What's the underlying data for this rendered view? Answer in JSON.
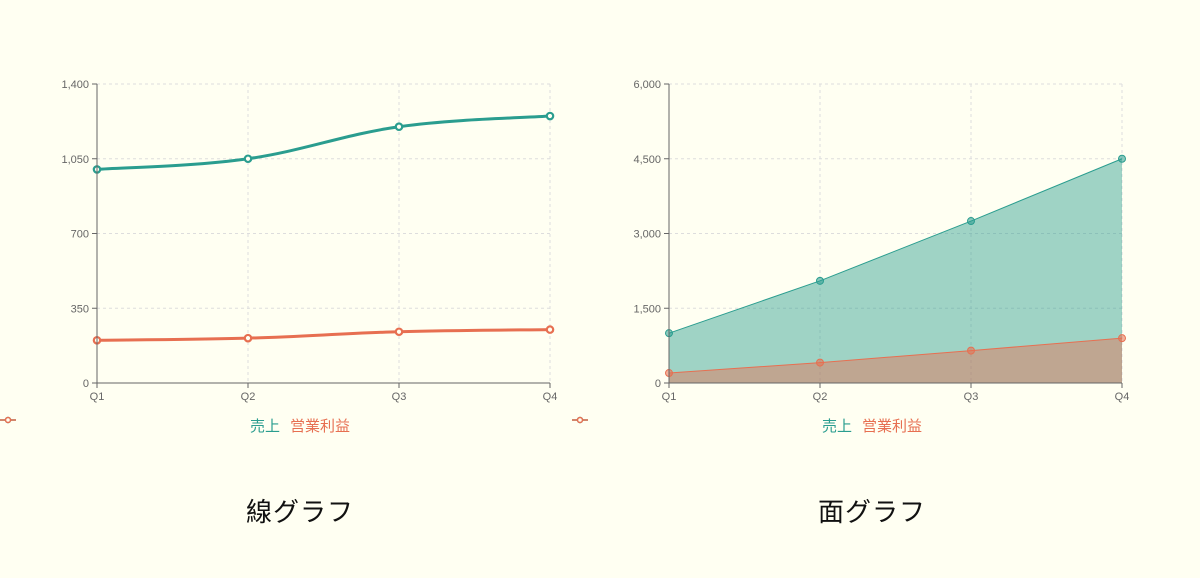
{
  "colors": {
    "background": "#fffff2",
    "sales": "#2a9d8f",
    "profit": "#e76f51",
    "axis": "#666666",
    "grid": "#dddddd"
  },
  "legend": {
    "sales": "売上",
    "profit": "営業利益"
  },
  "chart_data": [
    {
      "type": "line",
      "title": "線グラフ",
      "categories": [
        "Q1",
        "Q2",
        "Q3",
        "Q4"
      ],
      "series": [
        {
          "name": "売上",
          "values": [
            1000,
            1050,
            1200,
            1250
          ]
        },
        {
          "name": "営業利益",
          "values": [
            200,
            210,
            240,
            250
          ]
        }
      ],
      "ylim": [
        0,
        1400
      ],
      "yticks": [
        0,
        350,
        700,
        1050,
        1400
      ],
      "ytick_labels": [
        "0",
        "350",
        "700",
        "1,050",
        "1,400"
      ],
      "xlabel": "",
      "ylabel": "",
      "grid": true,
      "legend_position": "bottom",
      "curve": "smooth"
    },
    {
      "type": "area",
      "title": "面グラフ",
      "categories": [
        "Q1",
        "Q2",
        "Q3",
        "Q4"
      ],
      "series": [
        {
          "name": "売上",
          "values": [
            1000,
            2050,
            3250,
            4500
          ]
        },
        {
          "name": "営業利益",
          "values": [
            200,
            410,
            650,
            900
          ]
        }
      ],
      "ylim": [
        0,
        6000
      ],
      "yticks": [
        0,
        1500,
        3000,
        4500,
        6000
      ],
      "ytick_labels": [
        "0",
        "1,500",
        "3,000",
        "4,500",
        "6,000"
      ],
      "xlabel": "",
      "ylabel": "",
      "grid": true,
      "legend_position": "bottom",
      "curve": "linear"
    }
  ]
}
